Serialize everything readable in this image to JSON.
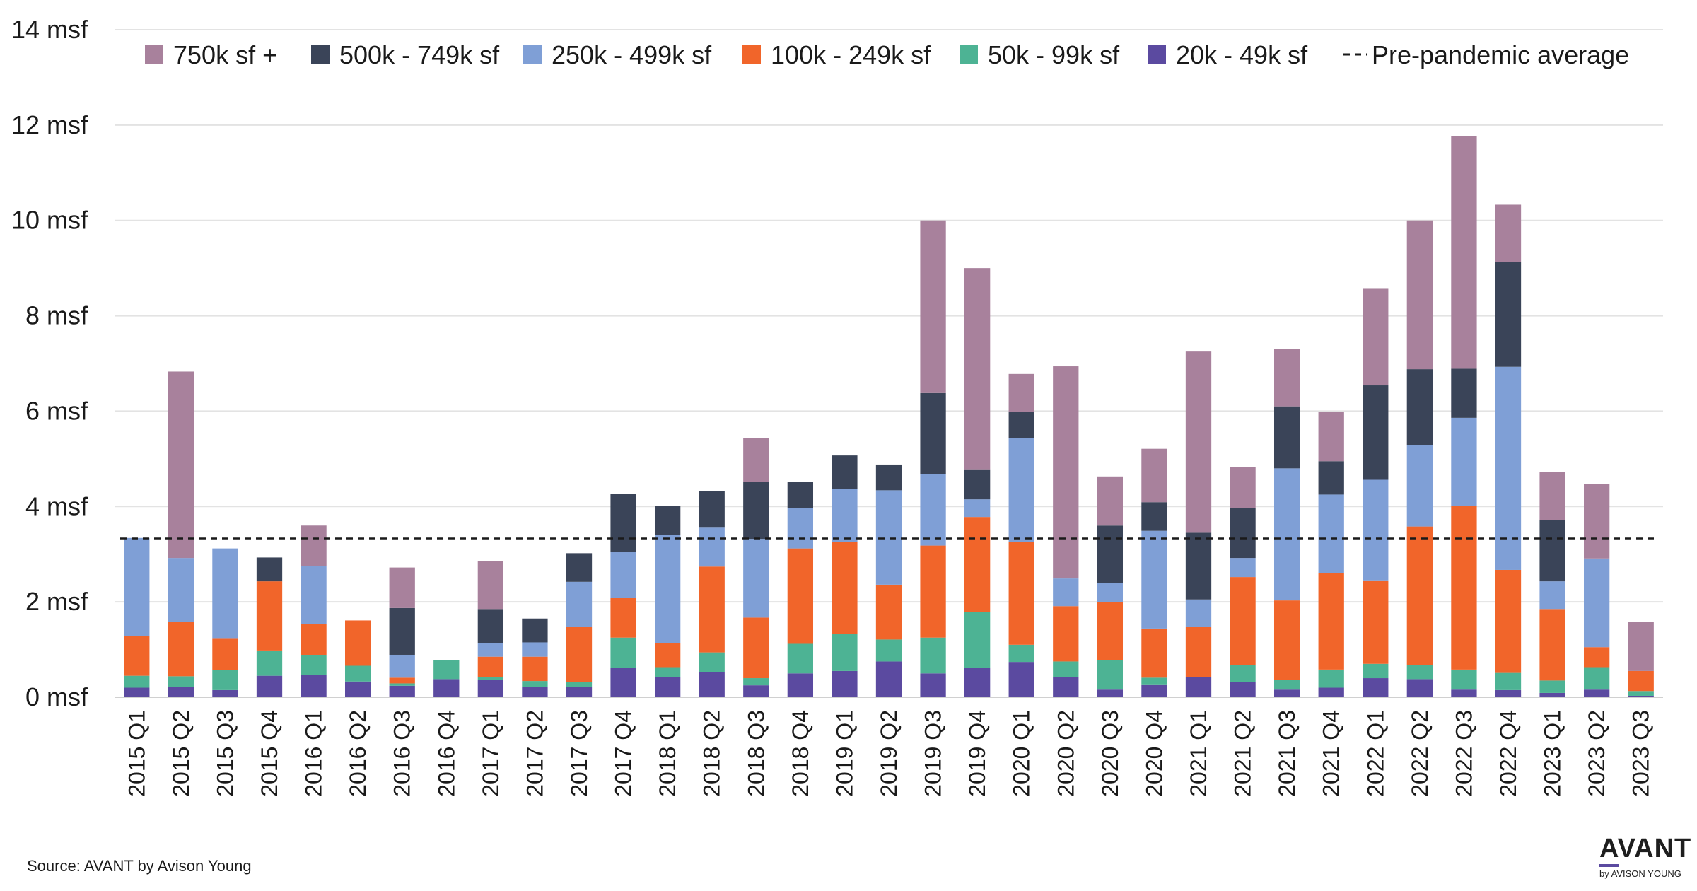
{
  "chart_data": {
    "type": "bar",
    "stacked": true,
    "title": "",
    "xlabel": "",
    "ylabel": "",
    "ylim": [
      0,
      14
    ],
    "y_ticks": [
      0,
      2,
      4,
      6,
      8,
      10,
      12,
      14
    ],
    "y_tick_labels": [
      "0 msf",
      "2 msf",
      "4 msf",
      "6 msf",
      "8 msf",
      "10 msf",
      "12 msf",
      "14 msf"
    ],
    "grid": true,
    "legend_position": "top",
    "categories": [
      "2015 Q1",
      "2015 Q2",
      "2015 Q3",
      "2015 Q4",
      "2016 Q1",
      "2016 Q2",
      "2016 Q3",
      "2016 Q4",
      "2017 Q1",
      "2017 Q2",
      "2017 Q3",
      "2017 Q4",
      "2018 Q1",
      "2018 Q2",
      "2018 Q3",
      "2018 Q4",
      "2019 Q1",
      "2019 Q2",
      "2019 Q3",
      "2019 Q4",
      "2020 Q1",
      "2020 Q2",
      "2020 Q3",
      "2020 Q4",
      "2021 Q1",
      "2021 Q2",
      "2021 Q3",
      "2021 Q4",
      "2022 Q1",
      "2022 Q2",
      "2022 Q3",
      "2022 Q4",
      "2023 Q1",
      "2023 Q2",
      "2023 Q3"
    ],
    "series": [
      {
        "name": "20k - 49k sf",
        "color": "#5b4aa0",
        "values": [
          0.2,
          0.22,
          0.15,
          0.45,
          0.47,
          0.33,
          0.24,
          0.38,
          0.37,
          0.22,
          0.22,
          0.62,
          0.43,
          0.52,
          0.25,
          0.5,
          0.55,
          0.75,
          0.5,
          0.62,
          0.74,
          0.42,
          0.16,
          0.27,
          0.43,
          0.32,
          0.16,
          0.2,
          0.4,
          0.38,
          0.16,
          0.15,
          0.09,
          0.16,
          0.03
        ]
      },
      {
        "name": "50k - 99k sf",
        "color": "#4db394",
        "values": [
          0.25,
          0.22,
          0.42,
          0.53,
          0.42,
          0.33,
          0.05,
          0.4,
          0.06,
          0.12,
          0.1,
          0.63,
          0.2,
          0.42,
          0.15,
          0.62,
          0.78,
          0.46,
          0.75,
          1.16,
          0.36,
          0.33,
          0.62,
          0.14,
          0.0,
          0.35,
          0.2,
          0.38,
          0.3,
          0.3,
          0.42,
          0.36,
          0.26,
          0.47,
          0.1
        ]
      },
      {
        "name": "100k - 249k sf",
        "color": "#f1652a",
        "values": [
          0.83,
          1.14,
          0.67,
          1.45,
          0.65,
          0.95,
          0.12,
          0.0,
          0.42,
          0.51,
          1.15,
          0.83,
          0.5,
          1.8,
          1.27,
          2.0,
          1.93,
          1.15,
          1.93,
          2.0,
          2.16,
          1.16,
          1.22,
          1.03,
          1.05,
          1.85,
          1.67,
          2.03,
          1.75,
          2.9,
          3.43,
          2.16,
          1.5,
          0.42,
          0.42
        ]
      },
      {
        "name": "250k - 499k sf",
        "color": "#7f9fd6",
        "values": [
          2.06,
          1.34,
          1.88,
          0.0,
          1.21,
          0.0,
          0.48,
          0.0,
          0.28,
          0.3,
          0.95,
          0.96,
          2.28,
          0.83,
          1.65,
          0.85,
          1.11,
          1.98,
          1.5,
          0.37,
          2.17,
          0.58,
          0.4,
          2.05,
          0.57,
          0.4,
          2.77,
          1.64,
          2.11,
          1.7,
          1.85,
          4.26,
          0.58,
          1.86,
          0.0
        ]
      },
      {
        "name": "500k - 749k sf",
        "color": "#3a4458",
        "values": [
          0.0,
          0.0,
          0.0,
          0.5,
          0.0,
          0.0,
          0.98,
          0.0,
          0.72,
          0.5,
          0.6,
          1.23,
          0.6,
          0.75,
          1.2,
          0.55,
          0.7,
          0.54,
          1.7,
          0.63,
          0.55,
          0.0,
          1.2,
          0.6,
          1.4,
          1.05,
          1.3,
          0.7,
          1.98,
          1.6,
          1.03,
          2.2,
          1.28,
          0.0,
          0.0
        ]
      },
      {
        "name": "750k sf +",
        "color": "#a8819c",
        "values": [
          0.0,
          3.91,
          0.0,
          0.0,
          0.85,
          0.0,
          0.85,
          0.0,
          1.0,
          0.0,
          0.0,
          0.0,
          0.0,
          0.0,
          0.92,
          0.0,
          0.0,
          0.0,
          3.62,
          4.22,
          0.8,
          4.45,
          1.03,
          1.12,
          3.8,
          0.85,
          1.2,
          1.03,
          2.04,
          3.12,
          4.88,
          1.2,
          1.02,
          1.56,
          1.03
        ]
      }
    ],
    "reference_line": {
      "name": "Pre-pandemic average",
      "value": 3.33,
      "color": "#1a1a1a",
      "style": "dashed"
    },
    "legend_order": [
      "750k sf +",
      "500k - 749k sf",
      "250k - 499k sf",
      "100k - 249k sf",
      "50k - 99k sf",
      "20k - 49k sf",
      "Pre-pandemic average"
    ]
  },
  "footer": {
    "source": "Source: AVANT by Avison Young",
    "logo_main": "AVANT",
    "logo_sub": "by AVISON YOUNG"
  }
}
